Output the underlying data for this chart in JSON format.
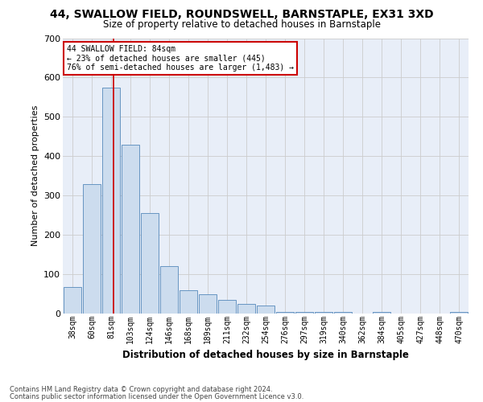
{
  "title_line1": "44, SWALLOW FIELD, ROUNDSWELL, BARNSTAPLE, EX31 3XD",
  "title_line2": "Size of property relative to detached houses in Barnstaple",
  "xlabel": "Distribution of detached houses by size in Barnstaple",
  "ylabel": "Number of detached properties",
  "bar_labels": [
    "38sqm",
    "60sqm",
    "81sqm",
    "103sqm",
    "124sqm",
    "146sqm",
    "168sqm",
    "189sqm",
    "211sqm",
    "232sqm",
    "254sqm",
    "276sqm",
    "297sqm",
    "319sqm",
    "340sqm",
    "362sqm",
    "384sqm",
    "405sqm",
    "427sqm",
    "448sqm",
    "470sqm"
  ],
  "bar_values": [
    68,
    330,
    575,
    430,
    255,
    120,
    60,
    50,
    35,
    25,
    20,
    5,
    5,
    5,
    5,
    0,
    5,
    0,
    0,
    0,
    5
  ],
  "bar_color": "#ccdcee",
  "bar_edge_color": "#5588bb",
  "grid_color": "#cccccc",
  "bg_color": "#e8eef8",
  "vline_color": "#cc0000",
  "vline_pos": 2.13,
  "annotation_line1": "44 SWALLOW FIELD: 84sqm",
  "annotation_line2": "← 23% of detached houses are smaller (445)",
  "annotation_line3": "76% of semi-detached houses are larger (1,483) →",
  "annotation_box_color": "#ffffff",
  "annotation_box_edge": "#cc0000",
  "footnote1": "Contains HM Land Registry data © Crown copyright and database right 2024.",
  "footnote2": "Contains public sector information licensed under the Open Government Licence v3.0.",
  "ylim_max": 700,
  "yticks": [
    0,
    100,
    200,
    300,
    400,
    500,
    600,
    700
  ]
}
